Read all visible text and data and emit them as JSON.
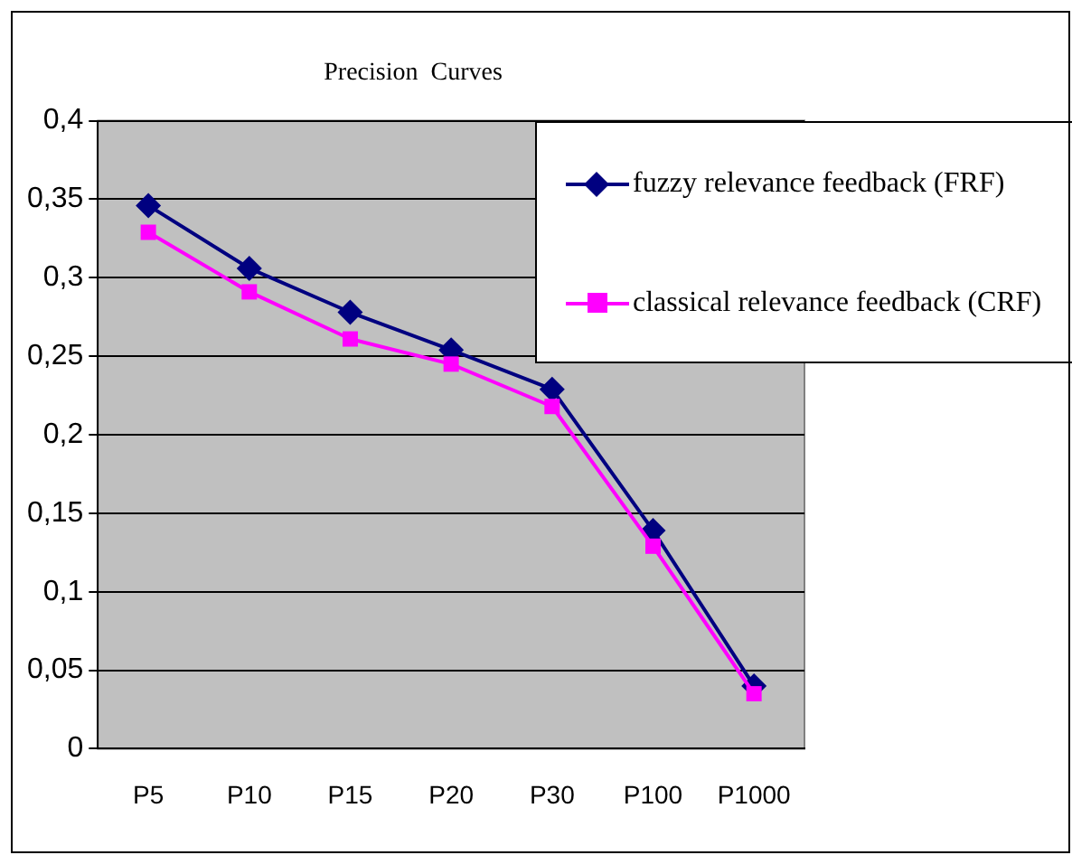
{
  "chart_data": {
    "type": "line",
    "title": "Precision  Curves",
    "categories": [
      "P5",
      "P10",
      "P15",
      "P20",
      "P30",
      "P100",
      "P1000"
    ],
    "series": [
      {
        "name": "fuzzy relevance feedback (FRF)",
        "color": "#000080",
        "marker": "diamond",
        "values": [
          0.346,
          0.306,
          0.278,
          0.254,
          0.229,
          0.139,
          0.04
        ]
      },
      {
        "name": "classical relevance feedback (CRF)",
        "color": "#ff00ff",
        "marker": "square",
        "values": [
          0.329,
          0.291,
          0.261,
          0.245,
          0.218,
          0.129,
          0.035
        ]
      }
    ],
    "ylim": [
      0,
      0.4
    ],
    "yticks": [
      {
        "value": 0,
        "label": "0"
      },
      {
        "value": 0.05,
        "label": "0,05"
      },
      {
        "value": 0.1,
        "label": "0,1"
      },
      {
        "value": 0.15,
        "label": "0,15"
      },
      {
        "value": 0.2,
        "label": "0,2"
      },
      {
        "value": 0.25,
        "label": "0,25"
      },
      {
        "value": 0.3,
        "label": "0,3"
      },
      {
        "value": 0.35,
        "label": "0,35"
      },
      {
        "value": 0.4,
        "label": "0,4"
      }
    ],
    "grid": "y",
    "legend": "top right"
  }
}
